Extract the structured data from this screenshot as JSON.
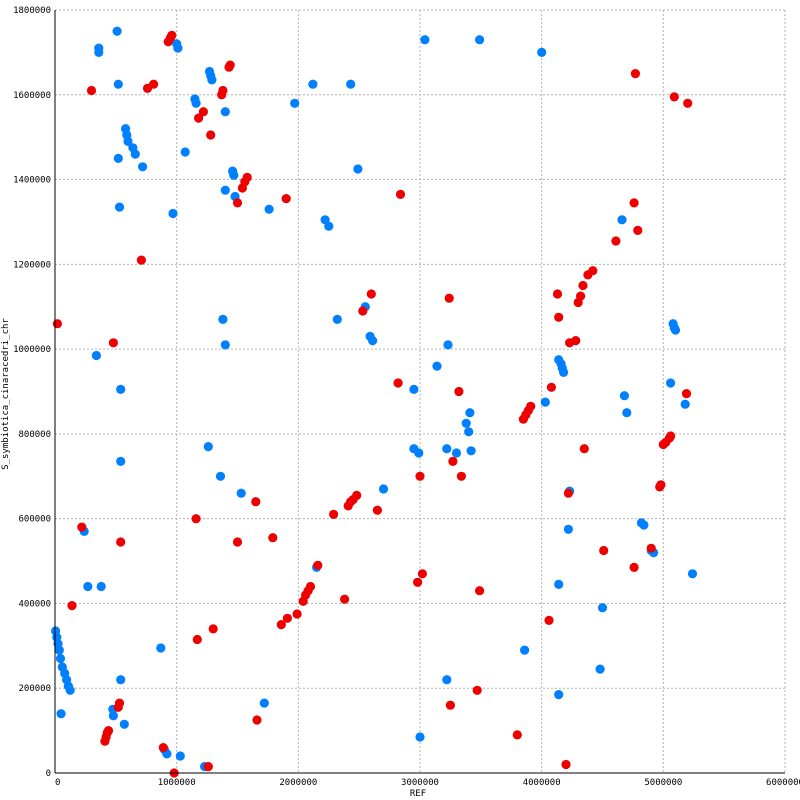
{
  "chart_data": {
    "type": "scatter",
    "title": "",
    "xlabel": "REF",
    "ylabel": "S_symbiotica_cinaracedri_chr",
    "xlim": [
      0,
      6000000
    ],
    "ylim": [
      0,
      1800000
    ],
    "x_ticks": [
      "0",
      "1000000",
      "2000000",
      "3000000",
      "4000000",
      "5000000",
      "6000000"
    ],
    "y_ticks": [
      "0",
      "200000",
      "400000",
      "600000",
      "800000",
      "1000000",
      "1200000",
      "1400000",
      "1600000",
      "1800000"
    ],
    "grid": true,
    "legend": "none",
    "colors": {
      "forward": "#0080ff",
      "reverse": "#ee0000",
      "grid": "#b3b3b3",
      "axis": "#000000"
    },
    "series": [
      {
        "color": "#0080ff",
        "points": [
          [
            5000,
            335000
          ],
          [
            15000,
            320000
          ],
          [
            25000,
            305000
          ],
          [
            35000,
            290000
          ],
          [
            45000,
            270000
          ],
          [
            60000,
            250000
          ],
          [
            80000,
            235000
          ],
          [
            95000,
            220000
          ],
          [
            110000,
            205000
          ],
          [
            125000,
            195000
          ],
          [
            50000,
            140000
          ],
          [
            240000,
            570000
          ],
          [
            270000,
            440000
          ],
          [
            340000,
            985000
          ],
          [
            360000,
            1710000
          ],
          [
            475000,
            150000
          ],
          [
            480000,
            135000
          ],
          [
            510000,
            1750000
          ],
          [
            520000,
            1625000
          ],
          [
            520000,
            1450000
          ],
          [
            530000,
            1335000
          ],
          [
            540000,
            905000
          ],
          [
            540000,
            735000
          ],
          [
            540000,
            220000
          ],
          [
            570000,
            115000
          ],
          [
            580000,
            1520000
          ],
          [
            590000,
            1505000
          ],
          [
            600000,
            1490000
          ],
          [
            640000,
            1475000
          ],
          [
            660000,
            1460000
          ],
          [
            720000,
            1430000
          ],
          [
            870000,
            295000
          ],
          [
            900000,
            55000
          ],
          [
            920000,
            45000
          ],
          [
            970000,
            1320000
          ],
          [
            1000000,
            1720000
          ],
          [
            1010000,
            1710000
          ],
          [
            1030000,
            40000
          ],
          [
            1070000,
            1465000
          ],
          [
            1150000,
            1590000
          ],
          [
            1160000,
            1580000
          ],
          [
            1230000,
            15000
          ],
          [
            1260000,
            770000
          ],
          [
            1270000,
            1655000
          ],
          [
            1280000,
            1645000
          ],
          [
            1290000,
            1635000
          ],
          [
            1360000,
            700000
          ],
          [
            1380000,
            1070000
          ],
          [
            1400000,
            1560000
          ],
          [
            1400000,
            1375000
          ],
          [
            1400000,
            1010000
          ],
          [
            1460000,
            1420000
          ],
          [
            1470000,
            1410000
          ],
          [
            1480000,
            1360000
          ],
          [
            1530000,
            660000
          ],
          [
            1720000,
            165000
          ],
          [
            1760000,
            1330000
          ],
          [
            1970000,
            1580000
          ],
          [
            2120000,
            1625000
          ],
          [
            2150000,
            485000
          ],
          [
            2220000,
            1305000
          ],
          [
            2250000,
            1290000
          ],
          [
            2320000,
            1070000
          ],
          [
            2430000,
            1625000
          ],
          [
            2490000,
            1425000
          ],
          [
            2550000,
            1100000
          ],
          [
            2590000,
            1030000
          ],
          [
            2610000,
            1020000
          ],
          [
            2700000,
            670000
          ],
          [
            2950000,
            905000
          ],
          [
            2950000,
            765000
          ],
          [
            2990000,
            755000
          ],
          [
            3000000,
            85000
          ],
          [
            3040000,
            1730000
          ],
          [
            3140000,
            960000
          ],
          [
            3220000,
            765000
          ],
          [
            3220000,
            220000
          ],
          [
            3230000,
            1010000
          ],
          [
            3300000,
            755000
          ],
          [
            3380000,
            825000
          ],
          [
            3400000,
            805000
          ],
          [
            3410000,
            850000
          ],
          [
            3420000,
            760000
          ],
          [
            3490000,
            1730000
          ],
          [
            3860000,
            290000
          ],
          [
            4000000,
            1700000
          ],
          [
            4030000,
            875000
          ],
          [
            4140000,
            975000
          ],
          [
            4160000,
            965000
          ],
          [
            4170000,
            955000
          ],
          [
            4180000,
            945000
          ],
          [
            4220000,
            575000
          ],
          [
            4230000,
            665000
          ],
          [
            4140000,
            445000
          ],
          [
            4140000,
            185000
          ],
          [
            4480000,
            245000
          ],
          [
            4500000,
            390000
          ],
          [
            4660000,
            1305000
          ],
          [
            4680000,
            890000
          ],
          [
            4700000,
            850000
          ],
          [
            4820000,
            590000
          ],
          [
            4840000,
            585000
          ],
          [
            4900000,
            525000
          ],
          [
            4920000,
            520000
          ],
          [
            5060000,
            920000
          ],
          [
            5080000,
            1060000
          ],
          [
            5090000,
            1050000
          ],
          [
            5100000,
            1045000
          ],
          [
            5180000,
            870000
          ],
          [
            5240000,
            470000
          ],
          [
            380000,
            440000
          ],
          [
            360000,
            1700000
          ]
        ]
      },
      {
        "color": "#ee0000",
        "points": [
          [
            20000,
            1060000
          ],
          [
            140000,
            395000
          ],
          [
            220000,
            580000
          ],
          [
            300000,
            1610000
          ],
          [
            410000,
            75000
          ],
          [
            420000,
            85000
          ],
          [
            430000,
            95000
          ],
          [
            440000,
            100000
          ],
          [
            480000,
            1015000
          ],
          [
            520000,
            155000
          ],
          [
            530000,
            165000
          ],
          [
            540000,
            545000
          ],
          [
            710000,
            1210000
          ],
          [
            760000,
            1615000
          ],
          [
            810000,
            1625000
          ],
          [
            890000,
            60000
          ],
          [
            930000,
            1725000
          ],
          [
            950000,
            1735000
          ],
          [
            960000,
            1740000
          ],
          [
            980000,
            0
          ],
          [
            1160000,
            600000
          ],
          [
            1170000,
            315000
          ],
          [
            1180000,
            1545000
          ],
          [
            1220000,
            1560000
          ],
          [
            1260000,
            15000
          ],
          [
            1280000,
            1505000
          ],
          [
            1300000,
            340000
          ],
          [
            1370000,
            1600000
          ],
          [
            1380000,
            1610000
          ],
          [
            1430000,
            1665000
          ],
          [
            1440000,
            1670000
          ],
          [
            1500000,
            545000
          ],
          [
            1500000,
            1345000
          ],
          [
            1540000,
            1380000
          ],
          [
            1560000,
            1395000
          ],
          [
            1580000,
            1405000
          ],
          [
            1650000,
            640000
          ],
          [
            1660000,
            125000
          ],
          [
            1790000,
            555000
          ],
          [
            1860000,
            350000
          ],
          [
            1900000,
            1355000
          ],
          [
            1910000,
            365000
          ],
          [
            1990000,
            375000
          ],
          [
            2040000,
            405000
          ],
          [
            2060000,
            420000
          ],
          [
            2080000,
            430000
          ],
          [
            2100000,
            440000
          ],
          [
            2160000,
            490000
          ],
          [
            2290000,
            610000
          ],
          [
            2380000,
            410000
          ],
          [
            2410000,
            630000
          ],
          [
            2430000,
            640000
          ],
          [
            2450000,
            645000
          ],
          [
            2480000,
            655000
          ],
          [
            2530000,
            1090000
          ],
          [
            2600000,
            1130000
          ],
          [
            2650000,
            620000
          ],
          [
            2820000,
            920000
          ],
          [
            2840000,
            1365000
          ],
          [
            2980000,
            450000
          ],
          [
            3000000,
            700000
          ],
          [
            3020000,
            470000
          ],
          [
            3240000,
            1120000
          ],
          [
            3250000,
            160000
          ],
          [
            3270000,
            735000
          ],
          [
            3320000,
            900000
          ],
          [
            3340000,
            700000
          ],
          [
            3470000,
            195000
          ],
          [
            3490000,
            430000
          ],
          [
            3800000,
            90000
          ],
          [
            3850000,
            835000
          ],
          [
            3870000,
            845000
          ],
          [
            3890000,
            855000
          ],
          [
            3910000,
            865000
          ],
          [
            4060000,
            360000
          ],
          [
            4080000,
            910000
          ],
          [
            4130000,
            1130000
          ],
          [
            4140000,
            1075000
          ],
          [
            4200000,
            20000
          ],
          [
            4220000,
            660000
          ],
          [
            4230000,
            1015000
          ],
          [
            4280000,
            1020000
          ],
          [
            4300000,
            1110000
          ],
          [
            4320000,
            1125000
          ],
          [
            4340000,
            1150000
          ],
          [
            4350000,
            765000
          ],
          [
            4380000,
            1175000
          ],
          [
            4420000,
            1185000
          ],
          [
            4510000,
            525000
          ],
          [
            4610000,
            1255000
          ],
          [
            4760000,
            485000
          ],
          [
            4760000,
            1345000
          ],
          [
            4770000,
            1650000
          ],
          [
            4790000,
            1280000
          ],
          [
            4900000,
            530000
          ],
          [
            4970000,
            675000
          ],
          [
            4980000,
            680000
          ],
          [
            5000000,
            775000
          ],
          [
            5020000,
            780000
          ],
          [
            5050000,
            790000
          ],
          [
            5060000,
            795000
          ],
          [
            5090000,
            1595000
          ],
          [
            5190000,
            895000
          ],
          [
            5200000,
            1580000
          ]
        ]
      }
    ]
  }
}
